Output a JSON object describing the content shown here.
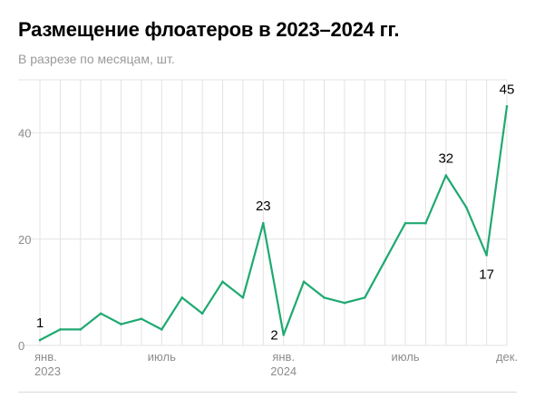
{
  "title": "Размещение флоатеров в 2023–2024 гг.",
  "subtitle": "В разрезе по месяцам, шт.",
  "chart_data": {
    "type": "line",
    "title": "Размещение флоатеров в 2023–2024 гг.",
    "subtitle": "В разрезе по месяцам, шт.",
    "x": [
      "2023-01",
      "2023-02",
      "2023-03",
      "2023-04",
      "2023-05",
      "2023-06",
      "2023-07",
      "2023-08",
      "2023-09",
      "2023-10",
      "2023-11",
      "2023-12",
      "2024-01",
      "2024-02",
      "2024-03",
      "2024-04",
      "2024-05",
      "2024-06",
      "2024-07",
      "2024-08",
      "2024-09",
      "2024-10",
      "2024-11",
      "2024-12"
    ],
    "series": [
      {
        "values": [
          1,
          3,
          3,
          6,
          4,
          5,
          3,
          9,
          6,
          12,
          9,
          23,
          2,
          12,
          9,
          8,
          9,
          16,
          23,
          23,
          32,
          26,
          17,
          45
        ]
      }
    ],
    "ylim": [
      0,
      50
    ],
    "y_ticks": [
      0,
      20,
      40
    ],
    "x_tick_labels": [
      {
        "index": 0,
        "label": "янв.",
        "sublabel": "2023"
      },
      {
        "index": 6,
        "label": "июль",
        "sublabel": ""
      },
      {
        "index": 12,
        "label": "янв.",
        "sublabel": "2024"
      },
      {
        "index": 18,
        "label": "июль",
        "sublabel": ""
      },
      {
        "index": 23,
        "label": "дек.",
        "sublabel": ""
      }
    ],
    "annotations": [
      {
        "index": 0,
        "text": "1",
        "position": "above"
      },
      {
        "index": 11,
        "text": "23",
        "position": "above"
      },
      {
        "index": 12,
        "text": "2",
        "position": "left"
      },
      {
        "index": 20,
        "text": "32",
        "position": "above"
      },
      {
        "index": 22,
        "text": "17",
        "position": "below"
      },
      {
        "index": 23,
        "text": "45",
        "position": "above"
      }
    ],
    "grid": true,
    "colors": {
      "line": "#1fa971",
      "grid": "#e3e3e3",
      "axis_text": "#8c8c8c",
      "label_text": "#000000"
    }
  }
}
